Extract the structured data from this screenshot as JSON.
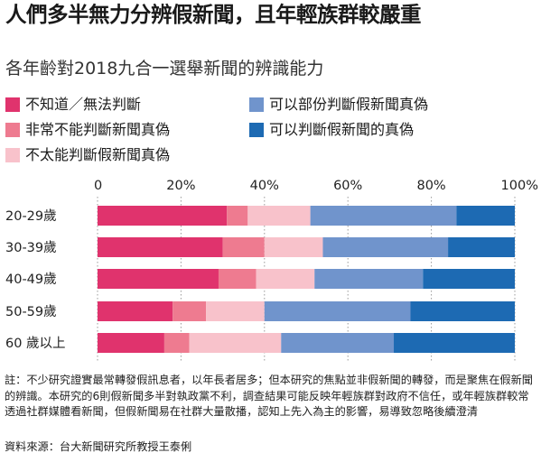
{
  "title": "人們多半無力分辨假新聞，且年輕族群較嚴重",
  "subtitle": "各年齡對2018九合一選舉新聞的辨識能力",
  "note": "註：不少研究證實最常轉發假訊息者，以年長者居多；但本研究的焦點並非假新聞的轉發，而是聚焦在假新聞的辨識。本研究的6則假新聞多半對執政黨不利，調查結果可能反映年輕族群對政府不信任，或年輕族群較常透過社群媒體看新聞，但假新聞易在社群大量散播，認知上先入為主的影響，易導致忽略後續澄清",
  "source": "資料來源：台大新聞研究所教授王泰俐",
  "chart_data": {
    "type": "bar",
    "orientation": "horizontal",
    "stacked": true,
    "categories": [
      "20-29歲",
      "30-39歲",
      "40-49歲",
      "50-59歲",
      "60 歲以上"
    ],
    "xlim": [
      0,
      100
    ],
    "xticks": [
      "0",
      "20%",
      "40%",
      "60%",
      "80%",
      "100%"
    ],
    "grid": true,
    "legend_position": "top",
    "series": [
      {
        "name": "不知道／無法判斷",
        "color": "#e0336d",
        "values": [
          31,
          30,
          29,
          18,
          16
        ]
      },
      {
        "name": "非常不能判斷新聞真偽",
        "color": "#ee7b90",
        "values": [
          5,
          10,
          9,
          8,
          6
        ]
      },
      {
        "name": "不太能判斷假新聞真偽",
        "color": "#f8c2cb",
        "values": [
          15,
          14,
          14,
          14,
          22
        ]
      },
      {
        "name": "可以部份判斷假新聞真偽",
        "color": "#7094cc",
        "values": [
          35,
          30,
          26,
          35,
          27
        ]
      },
      {
        "name": "可以判斷假新聞的真偽",
        "color": "#1d6ab3",
        "values": [
          14,
          16,
          22,
          25,
          29
        ]
      }
    ]
  }
}
